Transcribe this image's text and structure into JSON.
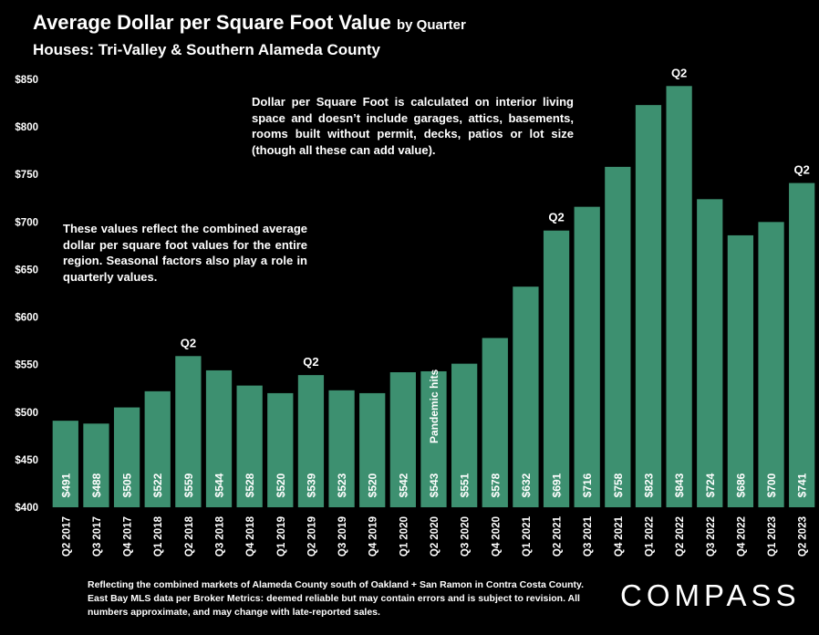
{
  "header": {
    "title": "Average Dollar per Square Foot Value",
    "title_suffix": "by Quarter",
    "subtitle": "Houses: Tri-Valley & Southern Alameda County"
  },
  "notes": {
    "top": "Dollar per Square Foot is calculated on interior living space and doesn’t include garages, attics, basements, rooms built without permit, decks, patios or lot size (though all these can add value).",
    "left": "These values reflect the combined average dollar per square foot values for the entire region. Seasonal factors also play a role in quarterly values."
  },
  "footer": {
    "text": "Reflecting the combined markets of Alameda County south of Oakland + San Ramon in Contra Costa County. East Bay MLS data per Broker Metrics:  deemed reliable but may contain errors and is subject to revision. All numbers approximate, and may change with late-reported sales."
  },
  "brand": {
    "logo_text": "COMPASS"
  },
  "colors": {
    "bar": "#3d9070",
    "background": "#000000",
    "text": "#ffffff"
  },
  "chart_data": {
    "type": "bar",
    "title": "Average Dollar per Square Foot Value",
    "subtitle": "Houses: Tri-Valley & Southern Alameda County",
    "categories": [
      "Q2 2017",
      "Q3 2017",
      "Q4 2017",
      "Q1 2018",
      "Q2 2018",
      "Q3 2018",
      "Q4 2018",
      "Q1 2019",
      "Q2 2019",
      "Q3 2019",
      "Q4 2019",
      "Q1 2020",
      "Q2 2020",
      "Q3 2020",
      "Q4 2020",
      "Q1 2021",
      "Q2 2021",
      "Q3 2021",
      "Q4 2021",
      "Q1 2022",
      "Q2 2022",
      "Q3 2022",
      "Q4 2022",
      "Q1 2023",
      "Q2 2023"
    ],
    "values": [
      491,
      488,
      505,
      522,
      559,
      544,
      528,
      520,
      539,
      523,
      520,
      542,
      543,
      551,
      578,
      632,
      691,
      716,
      758,
      823,
      843,
      724,
      686,
      700,
      741
    ],
    "value_labels": [
      "$491",
      "$488",
      "$505",
      "$522",
      "$559",
      "$544",
      "$528",
      "$520",
      "$539",
      "$523",
      "$520",
      "$542",
      "$543",
      "$551",
      "$578",
      "$632",
      "$691",
      "$716",
      "$758",
      "$823",
      "$843",
      "$724",
      "$686",
      "$700",
      "$741"
    ],
    "ylim": [
      400,
      850
    ],
    "yticks": [
      400,
      450,
      500,
      550,
      600,
      650,
      700,
      750,
      800,
      850
    ],
    "ytick_labels": [
      "$400",
      "$450",
      "$500",
      "$550",
      "$600",
      "$650",
      "$700",
      "$750",
      "$800",
      "$850"
    ],
    "grid": false,
    "annotations": [
      {
        "category": "Q2 2018",
        "text": "Q2"
      },
      {
        "category": "Q2 2019",
        "text": "Q2"
      },
      {
        "category": "Q2 2021",
        "text": "Q2"
      },
      {
        "category": "Q2 2022",
        "text": "Q2"
      },
      {
        "category": "Q2 2023",
        "text": "Q2"
      },
      {
        "category": "Q2 2020",
        "text": "Pandemic hits",
        "inside_bar": true
      }
    ]
  }
}
